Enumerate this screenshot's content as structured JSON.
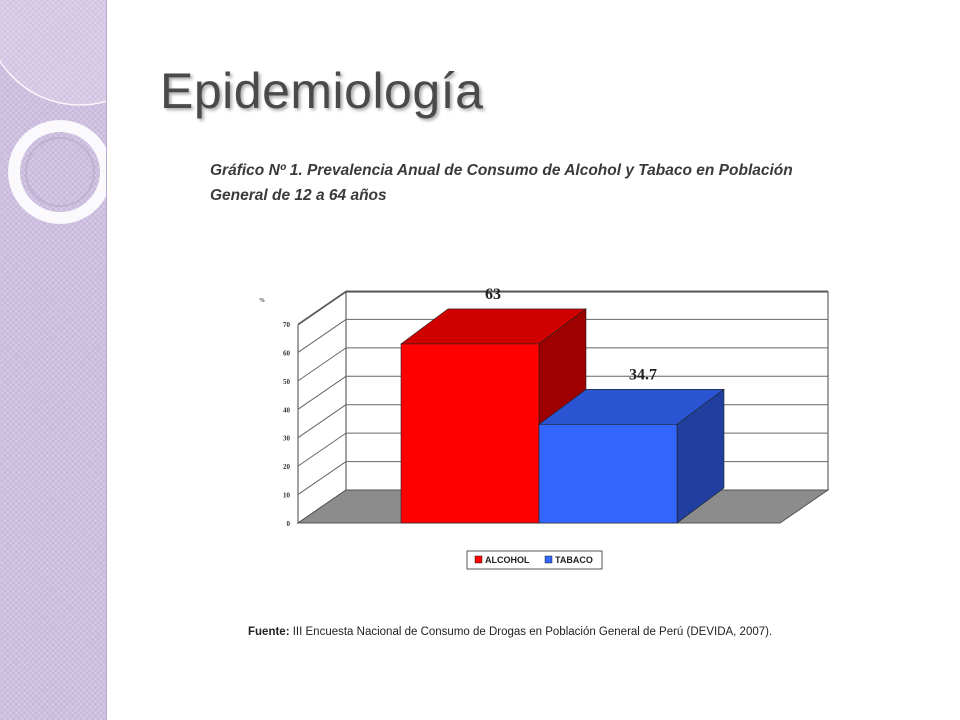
{
  "slide": {
    "title": "Epidemiología"
  },
  "chart_data": {
    "type": "bar",
    "title": "Gráfico Nº 1. Prevalencia Anual de Consumo de Alcohol y Tabaco en Población General de 12 a 64 años",
    "ylabel": "%",
    "ylim": [
      0,
      70
    ],
    "yticks": [
      "0",
      "10",
      "20",
      "30",
      "40",
      "50",
      "60",
      "70"
    ],
    "categories": [
      "ALCOHOL",
      "TABACO"
    ],
    "values": [
      63,
      34.7
    ],
    "data_labels": [
      "63",
      "34.7"
    ],
    "colors": [
      "#ff0000",
      "#3366ff"
    ],
    "three_d": true,
    "grid": true,
    "legend": "bottom",
    "legend_entries": [
      "ALCOHOL",
      "TABACO"
    ]
  },
  "source": {
    "label": "Fuente:",
    "text": " III Encuesta Nacional de Consumo de Drogas en Población General de Perú (DEVIDA, 2007)."
  }
}
